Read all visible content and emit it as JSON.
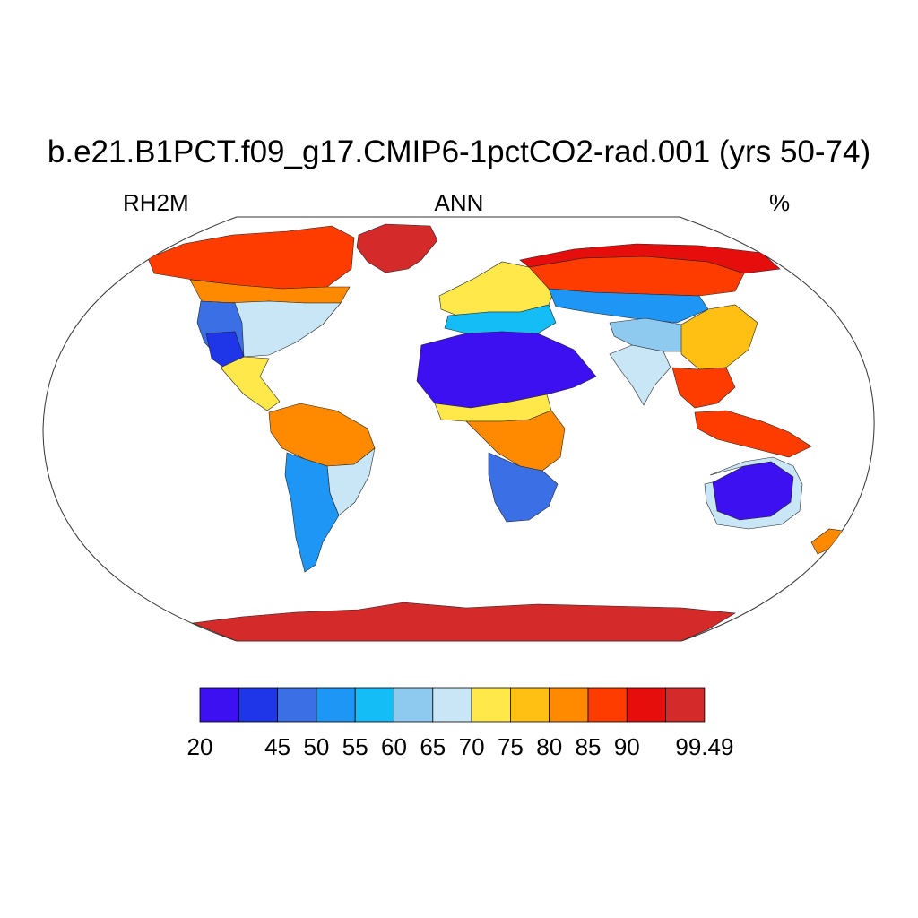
{
  "title": "b.e21.B1PCT.f09_g17.CMIP6-1pctCO2-rad.001 (yrs 50-74)",
  "left_label": "RH2M",
  "center_label": "ANN",
  "right_label": "%",
  "map_data": {
    "projection": "robinson",
    "variable": "RH2M",
    "season": "ANN",
    "units": "%",
    "ocean_masked": true,
    "regions": [
      {
        "name": "greenland",
        "level": 12
      },
      {
        "name": "north-america-arctic",
        "level": 10
      },
      {
        "name": "north-america-boreal",
        "level": 9
      },
      {
        "name": "north-america-temperate",
        "level": 6
      },
      {
        "name": "us-west-arid",
        "level": 2
      },
      {
        "name": "us-southwest",
        "level": 1
      },
      {
        "name": "mexico-central-america",
        "level": 7
      },
      {
        "name": "amazon",
        "level": 9
      },
      {
        "name": "south-america-east",
        "level": 6
      },
      {
        "name": "andes-south-america-south",
        "level": 3
      },
      {
        "name": "europe",
        "level": 7
      },
      {
        "name": "russia-boreal",
        "level": 10
      },
      {
        "name": "siberia-arctic",
        "level": 11
      },
      {
        "name": "central-asia",
        "level": 3
      },
      {
        "name": "mediterranean",
        "level": 4
      },
      {
        "name": "sahara-arabia",
        "level": 0
      },
      {
        "name": "sahel",
        "level": 7
      },
      {
        "name": "central-africa",
        "level": 9
      },
      {
        "name": "southern-africa",
        "level": 2
      },
      {
        "name": "tibet-himalaya",
        "level": 5
      },
      {
        "name": "india",
        "level": 6
      },
      {
        "name": "east-asia",
        "level": 8
      },
      {
        "name": "southeast-asia",
        "level": 10
      },
      {
        "name": "maritime-continent",
        "level": 10
      },
      {
        "name": "australia-interior",
        "level": 0
      },
      {
        "name": "australia-coast",
        "level": 6
      },
      {
        "name": "new-zealand",
        "level": 9
      },
      {
        "name": "antarctica",
        "level": 12
      }
    ]
  },
  "colorbar": {
    "colors": [
      "#3d10f2",
      "#1e35e8",
      "#3b6fe6",
      "#1d96f5",
      "#14bdf5",
      "#8ecaef",
      "#c9e6f7",
      "#ffe94a",
      "#ffbf13",
      "#ff8a00",
      "#ff3c00",
      "#e60d0d",
      "#d42a2a"
    ],
    "labels": [
      {
        "text": "20",
        "index": 0
      },
      {
        "text": "45",
        "index": 2
      },
      {
        "text": "50",
        "index": 3
      },
      {
        "text": "55",
        "index": 4
      },
      {
        "text": "60",
        "index": 5
      },
      {
        "text": "65",
        "index": 6
      },
      {
        "text": "70",
        "index": 7
      },
      {
        "text": "75",
        "index": 8
      },
      {
        "text": "80",
        "index": 9
      },
      {
        "text": "85",
        "index": 10
      },
      {
        "text": "90",
        "index": 11
      },
      {
        "text": "99.49",
        "index": 13
      }
    ]
  }
}
